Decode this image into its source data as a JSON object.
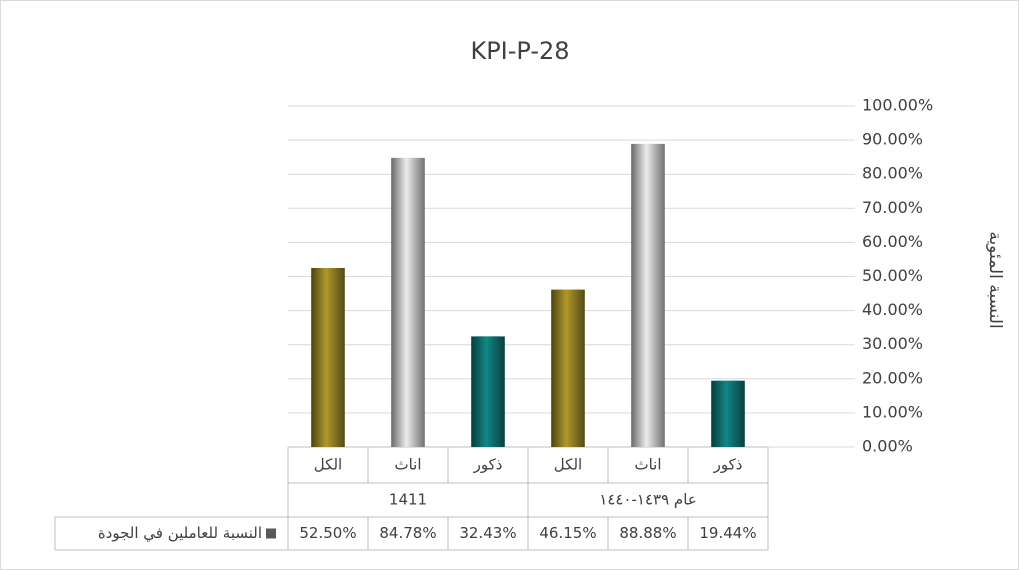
{
  "chart_data": {
    "type": "bar",
    "title": "KPI-P-28",
    "y_axis_label": "النسبة المئوية",
    "categories": [
      "الكل",
      "اناث",
      "ذكور",
      "الكل",
      "اناث",
      "ذكور"
    ],
    "group_labels": [
      "1411",
      "عام ١٤٣٩-١٤٤٠"
    ],
    "series": [
      {
        "name": "النسبة للعاملين في الجودة",
        "values": [
          52.5,
          84.78,
          32.43,
          46.15,
          88.88,
          19.44
        ],
        "value_labels": [
          "52.50%",
          "84.78%",
          "32.43%",
          "46.15%",
          "88.88%",
          "19.44%"
        ],
        "colors": [
          "#8c7a22",
          "#bdbdbd",
          "#0e6b6b",
          "#8c7a22",
          "#bdbdbd",
          "#0e6b6b"
        ]
      }
    ],
    "ylim": [
      0,
      100
    ],
    "yticks": [
      {
        "value": 0,
        "label": "0.00%"
      },
      {
        "value": 10,
        "label": "10.00%"
      },
      {
        "value": 20,
        "label": "20.00%"
      },
      {
        "value": 30,
        "label": "30.00%"
      },
      {
        "value": 40,
        "label": "40.00%"
      },
      {
        "value": 50,
        "label": "50.00%"
      },
      {
        "value": 60,
        "label": "60.00%"
      },
      {
        "value": 70,
        "label": "70.00%"
      },
      {
        "value": 80,
        "label": "80.00%"
      },
      {
        "value": 90,
        "label": "90.00%"
      },
      {
        "value": 100,
        "label": "100.00%"
      }
    ],
    "grid": true
  }
}
